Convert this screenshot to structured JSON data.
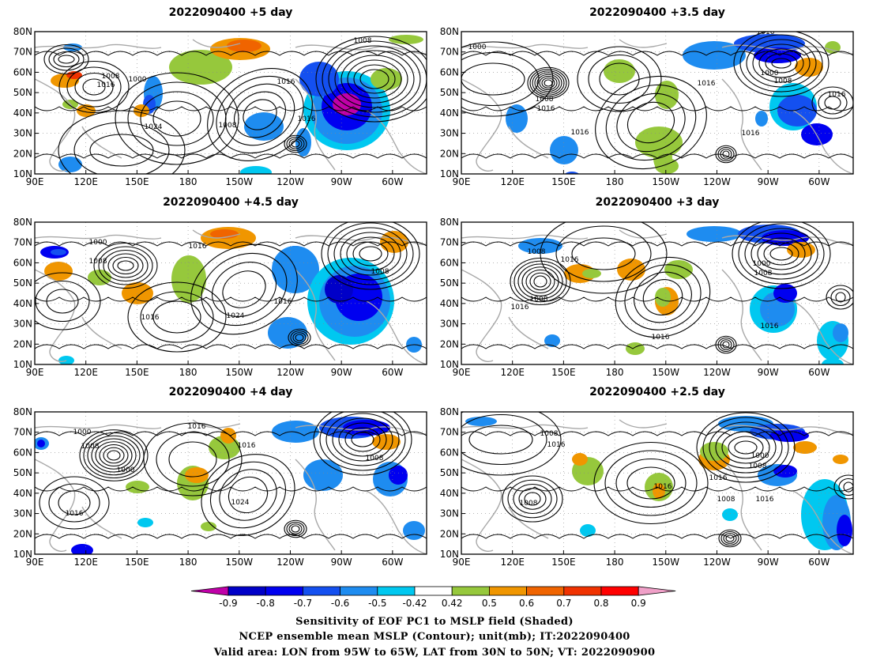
{
  "panels": [
    {
      "title": "2022090400 +5 day"
    },
    {
      "title": "2022090400 +3.5 day"
    },
    {
      "title": "2022090400 +4.5 day"
    },
    {
      "title": "2022090400 +3 day"
    },
    {
      "title": "2022090400 +4 day"
    },
    {
      "title": "2022090400 +2.5 day"
    }
  ],
  "axes": {
    "lat_ticks": [
      "10N",
      "20N",
      "30N",
      "40N",
      "50N",
      "60N",
      "70N",
      "80N"
    ],
    "lon_ticks": [
      "90E",
      "120E",
      "150E",
      "180",
      "150W",
      "120W",
      "90W",
      "60W"
    ],
    "lat_range": [
      10,
      80
    ],
    "lon_range_east": [
      90,
      320
    ],
    "grid": "dotted"
  },
  "contour_labels": {
    "panel_0": [
      "1008",
      "1000",
      "1016",
      "1008",
      "1016",
      "1024",
      "1008",
      "1016"
    ],
    "panel_1": [
      "1016",
      "1000",
      "1008",
      "1016",
      "1016",
      "1016",
      "1016",
      "1000",
      "1008",
      "1016"
    ],
    "panel_2": [
      "1000",
      "1008",
      "1016",
      "1016",
      "1024",
      "1016",
      "1008"
    ],
    "panel_3": [
      "1008",
      "1016",
      "1008",
      "1016",
      "1016",
      "1000",
      "1008",
      "1016"
    ],
    "panel_4": [
      "1000",
      "1008",
      "1000",
      "1016",
      "1024",
      "1016",
      "1016",
      "1008"
    ],
    "panel_5": [
      "1008",
      "1016",
      "1008",
      "1016",
      "1000",
      "1008",
      "1016",
      "1008",
      "1016"
    ]
  },
  "colorbar": {
    "ticks": [
      "-0.9",
      "-0.8",
      "-0.7",
      "-0.6",
      "-0.5",
      "-0.42",
      "0.42",
      "0.5",
      "0.6",
      "0.7",
      "0.8",
      "0.9"
    ],
    "colors": [
      "#c000a8",
      "#0000c8",
      "#0000f0",
      "#1450f0",
      "#1e8cf0",
      "#00c8f0",
      "#ffffff",
      "#96c83c",
      "#f09600",
      "#f06400",
      "#f03200",
      "#ff0000",
      "#f0a0c8"
    ]
  },
  "footer": {
    "line1": "Sensitivity of EOF PC1 to MSLP field (Shaded)",
    "line2": "NCEP ensemble mean MSLP (Contour); unit(mb); IT:2022090400",
    "line3": "Valid area: LON from 95W to 65W, LAT from 30N to 50N; VT: 2022090900"
  }
}
